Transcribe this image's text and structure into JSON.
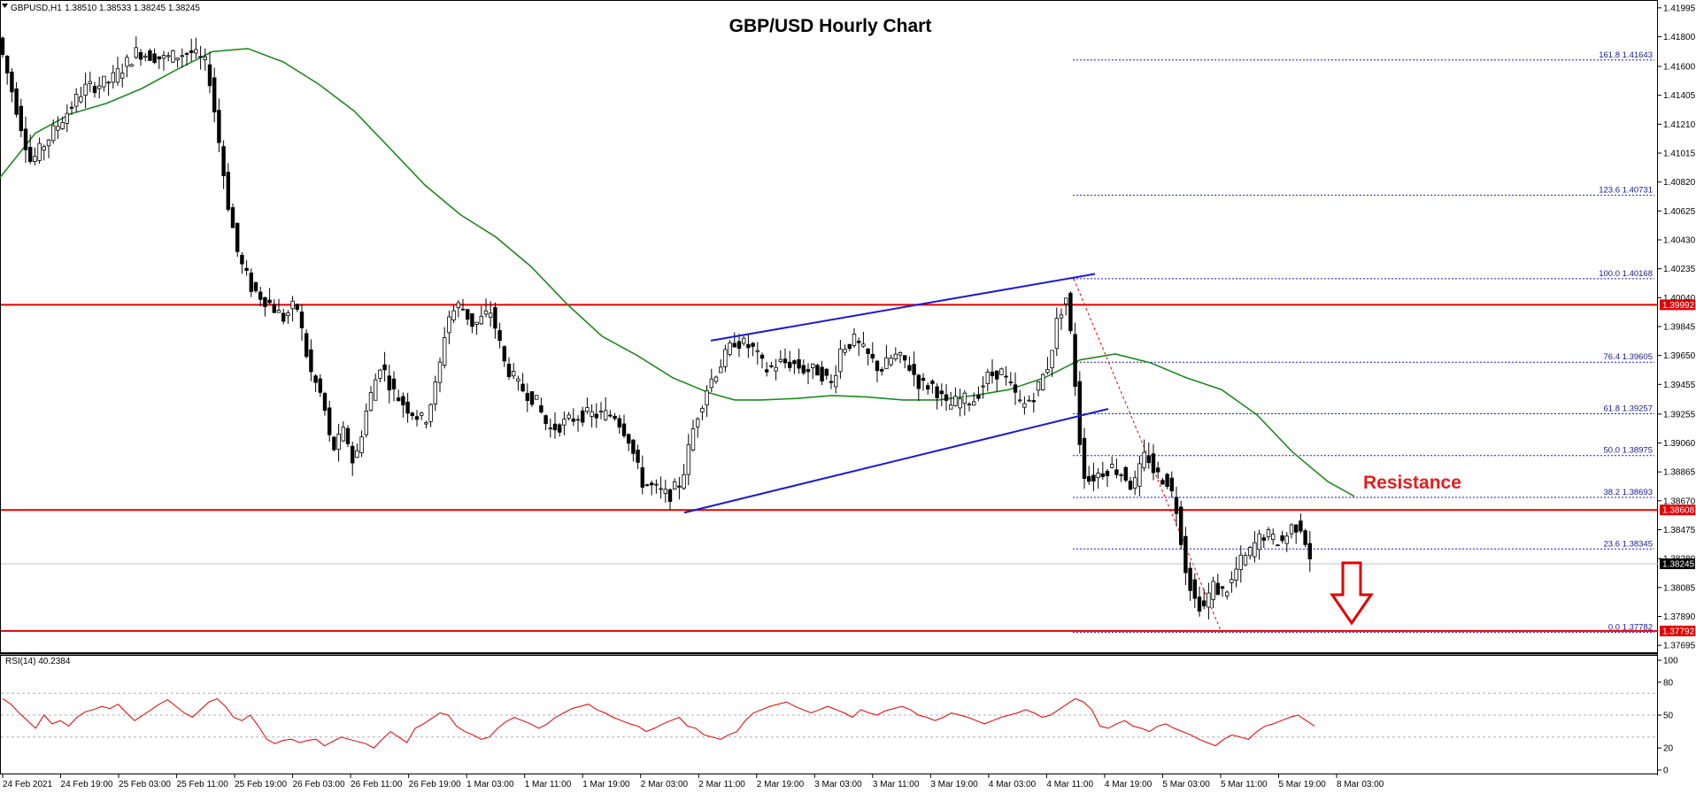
{
  "chart_data": {
    "type": "candlestick",
    "symbol_label": "GBPUSD,H1",
    "ohlc_label": "1.38510 1.38533 1.38245 1.38245",
    "title": "GBP/USD Hourly Chart",
    "ylim": [
      1.3769,
      1.42
    ],
    "y_ticks": [
      "1.41995",
      "1.41800",
      "1.41600",
      "1.41405",
      "1.41210",
      "1.41015",
      "1.40820",
      "1.40625",
      "1.40430",
      "1.40235",
      "1.40040",
      "1.39845",
      "1.39650",
      "1.39455",
      "1.39255",
      "1.39060",
      "1.38865",
      "1.38670",
      "1.38475",
      "1.38280",
      "1.38085",
      "1.37890",
      "1.37695"
    ],
    "x_ticks": [
      "24 Feb 2021",
      "24 Feb 19:00",
      "25 Feb 03:00",
      "25 Feb 11:00",
      "25 Feb 19:00",
      "26 Feb 03:00",
      "26 Feb 11:00",
      "26 Feb 19:00",
      "1 Mar 03:00",
      "1 Mar 11:00",
      "1 Mar 19:00",
      "2 Mar 03:00",
      "2 Mar 11:00",
      "2 Mar 19:00",
      "3 Mar 03:00",
      "3 Mar 11:00",
      "3 Mar 19:00",
      "4 Mar 03:00",
      "4 Mar 11:00",
      "4 Mar 19:00",
      "5 Mar 03:00",
      "5 Mar 11:00",
      "5 Mar 19:00",
      "8 Mar 03:00"
    ],
    "current_price": "1.38245",
    "horizontal_levels": [
      {
        "price": 1.39992,
        "label": "1.39992"
      },
      {
        "price": 1.38608,
        "label": "1.38608"
      },
      {
        "price": 1.37792,
        "label": "1.37792"
      }
    ],
    "fibonacci": [
      {
        "ratio": "161.8",
        "price": 1.41643,
        "label": "161.8 1.41643"
      },
      {
        "ratio": "123.6",
        "price": 1.40731,
        "label": "123.6 1.40731"
      },
      {
        "ratio": "100.0",
        "price": 1.40168,
        "label": "100.0 1.40168"
      },
      {
        "ratio": "76.4",
        "price": 1.39605,
        "label": "76.4 1.39605"
      },
      {
        "ratio": "61.8",
        "price": 1.39257,
        "label": "61.8 1.39257"
      },
      {
        "ratio": "50.0",
        "price": 1.38975,
        "label": "50.0 1.38975"
      },
      {
        "ratio": "38.2",
        "price": 1.38693,
        "label": "38.2 1.38693"
      },
      {
        "ratio": "23.6",
        "price": 1.38345,
        "label": "23.6 1.38345"
      },
      {
        "ratio": "0.0",
        "price": 1.37782,
        "label": "0.0 1.37782"
      }
    ],
    "annotations": {
      "resistance_label": "Resistance"
    },
    "rsi": {
      "label": "RSI(14) 40.2384",
      "ylim": [
        0,
        100
      ],
      "ticks": [
        "100",
        "80",
        "50",
        "20",
        "0"
      ],
      "levels": [
        70,
        50,
        30
      ],
      "values": [
        65,
        60,
        52,
        45,
        38,
        50,
        42,
        45,
        40,
        48,
        53,
        55,
        58,
        56,
        60,
        52,
        45,
        50,
        55,
        60,
        64,
        58,
        52,
        48,
        55,
        62,
        65,
        58,
        48,
        45,
        50,
        40,
        28,
        24,
        27,
        28,
        25,
        27,
        28,
        22,
        26,
        30,
        28,
        26,
        24,
        20,
        28,
        35,
        30,
        25,
        38,
        42,
        47,
        52,
        50,
        40,
        35,
        32,
        28,
        30,
        38,
        44,
        48,
        45,
        42,
        38,
        42,
        48,
        52,
        56,
        58,
        60,
        55,
        52,
        48,
        45,
        42,
        40,
        35,
        38,
        42,
        45,
        48,
        40,
        38,
        32,
        30,
        28,
        32,
        35,
        45,
        52,
        55,
        58,
        60,
        62,
        58,
        55,
        52,
        55,
        58,
        55,
        52,
        48,
        55,
        52,
        50,
        54,
        56,
        58,
        55,
        50,
        48,
        45,
        48,
        52,
        50,
        48,
        45,
        42,
        45,
        48,
        50,
        52,
        55,
        52,
        48,
        50,
        55,
        60,
        65,
        62,
        55,
        40,
        38,
        42,
        45,
        40,
        38,
        35,
        40,
        42,
        38,
        35,
        32,
        28,
        25,
        22,
        28,
        32,
        30,
        28,
        35,
        40,
        42,
        45,
        48,
        50,
        45,
        40
      ]
    },
    "sma_color": "#1f8a1f",
    "candle_color": "#000000",
    "level_color": "#e00000",
    "channel_color": "#1a1ad4",
    "fib_color": "#1a1ae0"
  }
}
